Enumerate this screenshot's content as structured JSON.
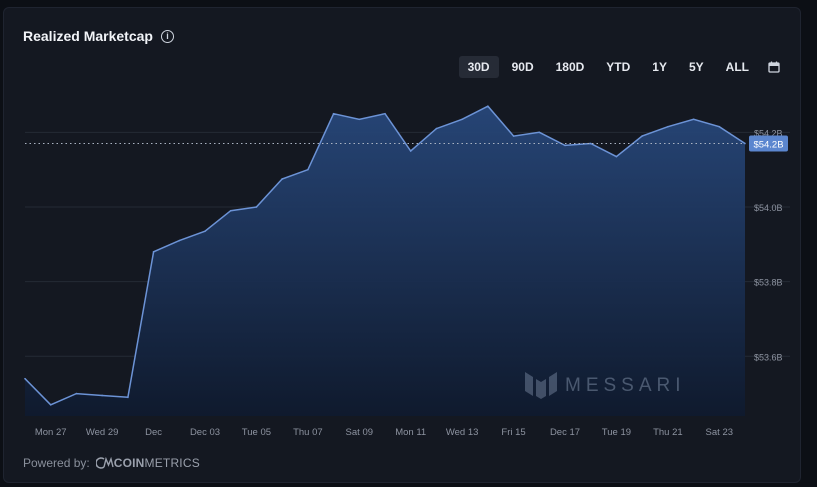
{
  "title": "Realized Marketcap",
  "info_icon": "info-icon",
  "ranges": [
    {
      "label": "30D",
      "active": true
    },
    {
      "label": "90D",
      "active": false
    },
    {
      "label": "180D",
      "active": false
    },
    {
      "label": "YTD",
      "active": false
    },
    {
      "label": "1Y",
      "active": false
    },
    {
      "label": "5Y",
      "active": false
    },
    {
      "label": "ALL",
      "active": false
    }
  ],
  "calendar_icon": "calendar-icon",
  "footer": {
    "powered_by": "Powered by:",
    "brand_a": "COIN",
    "brand_b": "METRICS"
  },
  "watermark": "MESSARI",
  "colors": {
    "line": "#6c93d6",
    "fill_top": "#27477a",
    "fill_bottom": "#0f1a2e",
    "badge": "#5b86cf"
  },
  "chart_data": {
    "type": "area",
    "x": [
      "Nov 26",
      "Nov 27",
      "Nov 28",
      "Nov 29",
      "Nov 30",
      "Dec 01",
      "Dec 02",
      "Dec 03",
      "Dec 04",
      "Dec 05",
      "Dec 06",
      "Dec 07",
      "Dec 08",
      "Dec 09",
      "Dec 10",
      "Dec 11",
      "Dec 12",
      "Dec 13",
      "Dec 14",
      "Dec 15",
      "Dec 16",
      "Dec 17",
      "Dec 18",
      "Dec 19",
      "Dec 20",
      "Dec 21",
      "Dec 22",
      "Dec 23",
      "Dec 24"
    ],
    "values": [
      53.54,
      53.47,
      53.5,
      53.495,
      53.49,
      53.88,
      53.91,
      53.935,
      53.99,
      54.0,
      54.075,
      54.1,
      54.25,
      54.235,
      54.25,
      54.15,
      54.21,
      54.235,
      54.27,
      54.19,
      54.2,
      54.165,
      54.17,
      54.135,
      54.19,
      54.215,
      54.235,
      54.215,
      54.17
    ],
    "x_ticks": [
      "Mon 27",
      "Wed 29",
      "Dec",
      "Dec 03",
      "Tue 05",
      "Thu 07",
      "Sat 09",
      "Mon 11",
      "Wed 13",
      "Fri 15",
      "Dec 17",
      "Tue 19",
      "Thu 21",
      "Sat 23"
    ],
    "y_ticks": [
      "$53.6B",
      "$53.8B",
      "$54.0B",
      "$54.2B"
    ],
    "y_tick_values": [
      53.6,
      53.8,
      54.0,
      54.2
    ],
    "ylim": [
      53.44,
      54.3
    ],
    "current_value_label": "$54.2B",
    "current_value": 54.17,
    "grid": true
  }
}
